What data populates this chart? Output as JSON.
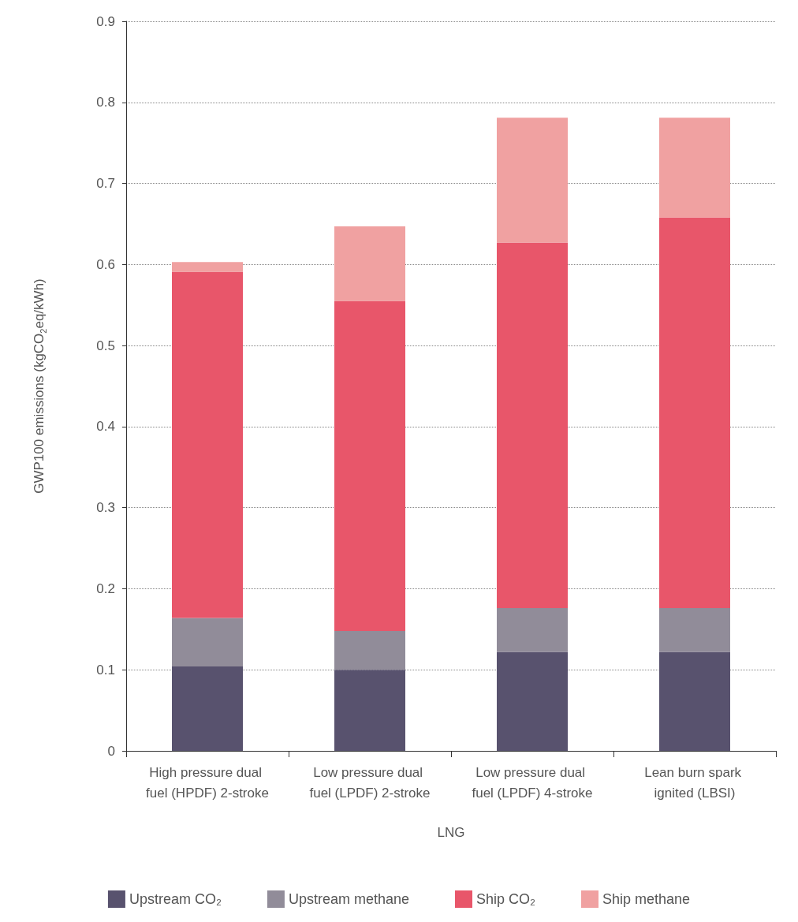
{
  "chart_data": {
    "type": "bar",
    "stacked": true,
    "xlabel": "LNG",
    "ylabel": "GWP100 emissions (kgCO$_{2}$eq/kWh)",
    "categories": [
      "High pressure dual fuel (HPDF) 2-stroke",
      "Low pressure dual fuel (LPDF) 2-stroke",
      "Low pressure dual fuel (LPDF) 4-stroke",
      "Lean burn spark ignited (LBSI)"
    ],
    "series": [
      {
        "name": "Upstream CO₂",
        "color": "#58526e",
        "values": [
          0.104,
          0.1,
          0.122,
          0.122
        ]
      },
      {
        "name": "Upstream methane",
        "color": "#918c99",
        "values": [
          0.06,
          0.048,
          0.054,
          0.054
        ]
      },
      {
        "name": "Ship CO₂",
        "color": "#e8566a",
        "values": [
          0.427,
          0.407,
          0.451,
          0.482
        ]
      },
      {
        "name": "Ship methane",
        "color": "#f0a1a1",
        "values": [
          0.012,
          0.092,
          0.154,
          0.123
        ]
      }
    ],
    "ylim": [
      0,
      0.9
    ],
    "yticks": [
      0,
      0.1,
      0.2,
      0.3,
      0.4,
      0.5,
      0.6,
      0.7,
      0.8,
      0.9
    ],
    "grid": "y",
    "legend": "bottom"
  }
}
